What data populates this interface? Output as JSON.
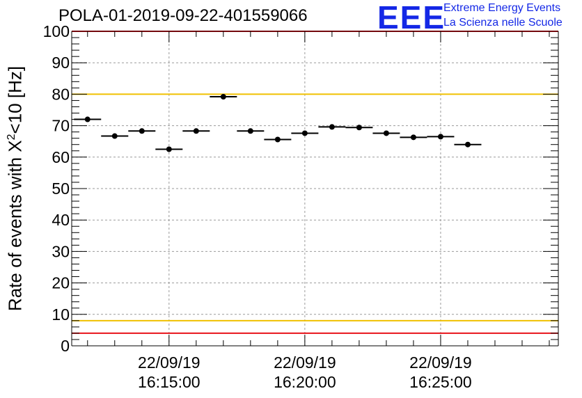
{
  "chart_data": {
    "type": "scatter",
    "title": "POLA-01-2019-09-22-401559066",
    "ylabel": {
      "prefix": "Rate of events with X",
      "sup": "2",
      "suffix": "<10 [Hz]"
    },
    "xlabel": "",
    "ylim": [
      0,
      100
    ],
    "yticks": [
      "0",
      "10",
      "20",
      "30",
      "40",
      "50",
      "60",
      "70",
      "80",
      "90",
      "100"
    ],
    "xlim": [
      "16:11:25",
      "16:29:20"
    ],
    "xticks": [
      {
        "date": "22/09/19",
        "time": "16:15:00"
      },
      {
        "date": "22/09/19",
        "time": "16:20:00"
      },
      {
        "date": "22/09/19",
        "time": "16:25:00"
      }
    ],
    "grid": true,
    "reference_lines": [
      {
        "y": 80,
        "color": "#f0c000"
      },
      {
        "y": 8,
        "color": "#f0c000"
      },
      {
        "y": 4,
        "color": "#e8121a"
      },
      {
        "y": 100,
        "color": "#e8121a"
      }
    ],
    "points": [
      {
        "x": "16:12:00",
        "y": 72.0,
        "xerr_s": 30
      },
      {
        "x": "16:13:00",
        "y": 66.7,
        "xerr_s": 30
      },
      {
        "x": "16:14:00",
        "y": 68.3,
        "xerr_s": 30
      },
      {
        "x": "16:15:00",
        "y": 62.5,
        "xerr_s": 30
      },
      {
        "x": "16:16:00",
        "y": 68.3,
        "xerr_s": 30
      },
      {
        "x": "16:17:00",
        "y": 79.2,
        "xerr_s": 30
      },
      {
        "x": "16:18:00",
        "y": 68.3,
        "xerr_s": 30
      },
      {
        "x": "16:19:00",
        "y": 65.6,
        "xerr_s": 30
      },
      {
        "x": "16:20:00",
        "y": 67.6,
        "xerr_s": 30
      },
      {
        "x": "16:21:00",
        "y": 69.6,
        "xerr_s": 30
      },
      {
        "x": "16:22:00",
        "y": 69.4,
        "xerr_s": 30
      },
      {
        "x": "16:23:00",
        "y": 67.6,
        "xerr_s": 30
      },
      {
        "x": "16:24:00",
        "y": 66.3,
        "xerr_s": 30
      },
      {
        "x": "16:25:00",
        "y": 66.5,
        "xerr_s": 30
      },
      {
        "x": "16:26:00",
        "y": 64.0,
        "xerr_s": 30
      }
    ]
  },
  "logo": {
    "text": "EEE",
    "line1": "Extreme Energy Events",
    "line2": "La Scienza nelle Scuole",
    "color": "#1428e6"
  }
}
